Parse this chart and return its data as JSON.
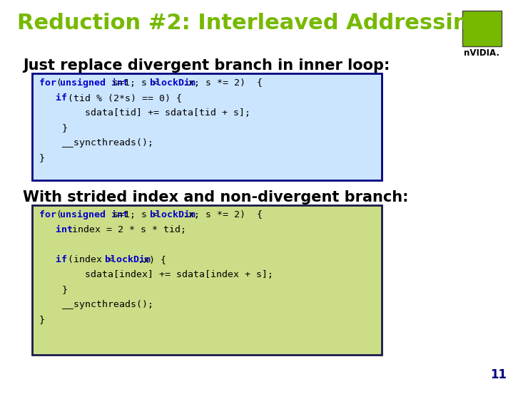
{
  "title": "Reduction #2: Interleaved Addressing",
  "title_color": "#76b900",
  "title_fontsize": 22,
  "bg_color": "#ffffff",
  "subtitle1": "Just replace divergent branch in inner loop:",
  "subtitle2": "With strided index and non-divergent branch:",
  "subtitle_fontsize": 15,
  "subtitle_color": "#000000",
  "box1_bg": "#cce5ff",
  "box1_border": "#000080",
  "box2_bg": "#ccdd88",
  "box2_border": "#1a1a4a",
  "code_fontsize": 9.5,
  "code_blue": "#0000cc",
  "code_black": "#000000",
  "page_number": "11",
  "page_num_color": "#000080",
  "nvidia_text_color": "#000000"
}
